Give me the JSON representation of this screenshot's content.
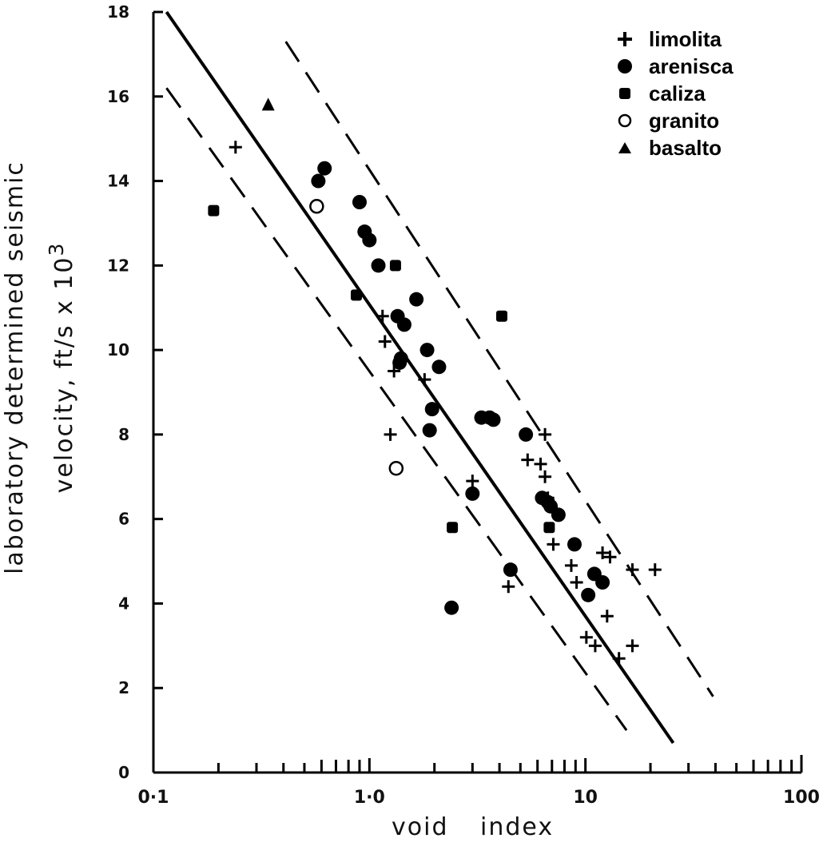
{
  "chart_data": {
    "type": "scatter",
    "xscale": "log",
    "xlim": [
      0.1,
      100
    ],
    "ylim": [
      0,
      18
    ],
    "x_tick_labels": [
      {
        "value": 0.1,
        "label": "0·1"
      },
      {
        "value": 1,
        "label": "1·0"
      },
      {
        "value": 10,
        "label": "10"
      },
      {
        "value": 100,
        "label": "100"
      }
    ],
    "y_tick_labels": [
      {
        "value": 0,
        "label": "0"
      },
      {
        "value": 2,
        "label": "2"
      },
      {
        "value": 4,
        "label": "4"
      },
      {
        "value": 6,
        "label": "6"
      },
      {
        "value": 8,
        "label": "8"
      },
      {
        "value": 10,
        "label": "10"
      },
      {
        "value": 12,
        "label": "12"
      },
      {
        "value": 14,
        "label": "14"
      },
      {
        "value": 16,
        "label": "16"
      },
      {
        "value": 18,
        "label": "18"
      }
    ],
    "ylabel_line1": "laboratory   determined   seismic",
    "ylabel_line2": "velocity, ft/s x 10",
    "ylabel_sup": "3",
    "xlabel": "void index",
    "legend_position": "top-right",
    "series": [
      {
        "name": "limolita",
        "marker": "plus",
        "points": [
          [
            0.24,
            14.8
          ],
          [
            1.15,
            10.8
          ],
          [
            1.18,
            10.2
          ],
          [
            1.3,
            9.5
          ],
          [
            1.8,
            9.3
          ],
          [
            1.25,
            8.0
          ],
          [
            3.0,
            6.9
          ],
          [
            4.4,
            4.4
          ],
          [
            5.4,
            7.4
          ],
          [
            6.2,
            7.3
          ],
          [
            6.5,
            8.0
          ],
          [
            6.5,
            7.0
          ],
          [
            6.7,
            6.5
          ],
          [
            7.1,
            5.4
          ],
          [
            8.6,
            4.9
          ],
          [
            9.1,
            4.5
          ],
          [
            10.1,
            3.2
          ],
          [
            11.1,
            3.0
          ],
          [
            12.0,
            5.2
          ],
          [
            12.6,
            3.7
          ],
          [
            13.0,
            5.1
          ],
          [
            14.3,
            2.7
          ],
          [
            16.5,
            4.8
          ],
          [
            16.5,
            3.0
          ],
          [
            21.0,
            4.8
          ]
        ]
      },
      {
        "name": "arenisca",
        "marker": "filled-circle",
        "points": [
          [
            0.58,
            14.0
          ],
          [
            0.62,
            14.3
          ],
          [
            0.9,
            13.5
          ],
          [
            0.95,
            12.8
          ],
          [
            1.0,
            12.6
          ],
          [
            1.1,
            12.0
          ],
          [
            1.35,
            10.8
          ],
          [
            1.45,
            10.6
          ],
          [
            1.4,
            9.8
          ],
          [
            1.38,
            9.7
          ],
          [
            1.65,
            11.2
          ],
          [
            1.85,
            10.0
          ],
          [
            2.1,
            9.6
          ],
          [
            1.95,
            8.6
          ],
          [
            1.9,
            8.1
          ],
          [
            3.0,
            6.6
          ],
          [
            3.3,
            8.4
          ],
          [
            3.6,
            8.4
          ],
          [
            3.75,
            8.35
          ],
          [
            4.5,
            4.8
          ],
          [
            2.4,
            3.9
          ],
          [
            5.3,
            8.0
          ],
          [
            6.3,
            6.5
          ],
          [
            6.7,
            6.4
          ],
          [
            6.9,
            6.3
          ],
          [
            7.5,
            6.1
          ],
          [
            8.9,
            5.4
          ],
          [
            10.3,
            4.2
          ],
          [
            11.0,
            4.7
          ],
          [
            12.0,
            4.5
          ]
        ]
      },
      {
        "name": "caliza",
        "marker": "filled-square",
        "points": [
          [
            0.19,
            13.3
          ],
          [
            0.87,
            11.3
          ],
          [
            1.32,
            12.0
          ],
          [
            2.42,
            5.8
          ],
          [
            4.1,
            10.8
          ],
          [
            6.8,
            5.8
          ]
        ]
      },
      {
        "name": "granito",
        "marker": "open-circle",
        "points": [
          [
            0.57,
            13.4
          ],
          [
            1.33,
            7.2
          ]
        ]
      },
      {
        "name": "basalto",
        "marker": "triangle",
        "points": [
          [
            0.34,
            15.8
          ]
        ]
      }
    ],
    "regression_lines": [
      {
        "style": "solid",
        "from": [
          0.115,
          18.0
        ],
        "to": [
          25.5,
          0.7
        ]
      },
      {
        "style": "dashed",
        "from": [
          0.41,
          17.3
        ],
        "to": [
          39.0,
          1.8
        ]
      },
      {
        "style": "dashed",
        "from": [
          0.115,
          16.2
        ],
        "to": [
          15.5,
          1.0
        ]
      }
    ]
  }
}
